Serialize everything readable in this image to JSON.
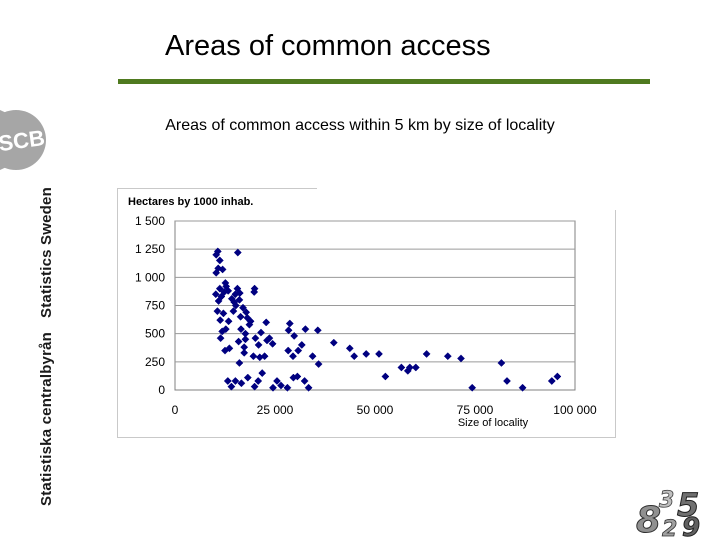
{
  "slide": {
    "title": "Areas of common access",
    "subtitle": "Areas of common access within 5 km by size of locality",
    "side_text_top": "Statistics Sweden",
    "side_text_bottom": "Statistiska centralbyrån",
    "logo_text": "SCB",
    "corner_logo_digits": [
      "8",
      "3",
      "5",
      "2",
      "9"
    ],
    "accent_color": "#4f7a1f",
    "marker_color": "#000080"
  },
  "chart_data": {
    "type": "scatter",
    "title": "",
    "xlabel": "Size of locality",
    "ylabel": "Hectares by 1000 inhab.",
    "xlim": [
      0,
      100000
    ],
    "ylim": [
      0,
      1500
    ],
    "x_ticks": [
      "0",
      "25 000",
      "50 000",
      "75 000",
      "100 000"
    ],
    "y_ticks": [
      "0",
      "250",
      "500",
      "750",
      "1 000",
      "1 250",
      "1 500"
    ],
    "grid": true,
    "legend": "none",
    "points": [
      [
        10300,
        1200
      ],
      [
        10700,
        1230
      ],
      [
        11200,
        1150
      ],
      [
        15700,
        1220
      ],
      [
        10300,
        1040
      ],
      [
        10800,
        1080
      ],
      [
        11900,
        1070
      ],
      [
        12600,
        950
      ],
      [
        12800,
        920
      ],
      [
        13300,
        880
      ],
      [
        10200,
        850
      ],
      [
        10900,
        790
      ],
      [
        11600,
        830
      ],
      [
        11200,
        900
      ],
      [
        12300,
        870
      ],
      [
        14200,
        810
      ],
      [
        15100,
        850
      ],
      [
        15600,
        900
      ],
      [
        16200,
        860
      ],
      [
        14800,
        780
      ],
      [
        16100,
        800
      ],
      [
        17000,
        730
      ],
      [
        17800,
        690
      ],
      [
        19900,
        900
      ],
      [
        19800,
        870
      ],
      [
        10600,
        700
      ],
      [
        11300,
        620
      ],
      [
        12100,
        680
      ],
      [
        12700,
        540
      ],
      [
        11800,
        520
      ],
      [
        13400,
        610
      ],
      [
        14600,
        700
      ],
      [
        15200,
        750
      ],
      [
        16400,
        650
      ],
      [
        18100,
        640
      ],
      [
        18600,
        580
      ],
      [
        18900,
        610
      ],
      [
        17600,
        500
      ],
      [
        16500,
        540
      ],
      [
        21500,
        510
      ],
      [
        22800,
        600
      ],
      [
        20100,
        460
      ],
      [
        20900,
        400
      ],
      [
        19600,
        300
      ],
      [
        15900,
        430
      ],
      [
        17300,
        380
      ],
      [
        17600,
        450
      ],
      [
        17300,
        330
      ],
      [
        22400,
        300
      ],
      [
        21200,
        290
      ],
      [
        11400,
        460
      ],
      [
        12500,
        350
      ],
      [
        13600,
        370
      ],
      [
        16100,
        240
      ],
      [
        23600,
        460
      ],
      [
        24400,
        410
      ],
      [
        23000,
        440
      ],
      [
        28400,
        530
      ],
      [
        28700,
        590
      ],
      [
        29800,
        480
      ],
      [
        28300,
        350
      ],
      [
        29500,
        300
      ],
      [
        30800,
        350
      ],
      [
        31700,
        400
      ],
      [
        32600,
        540
      ],
      [
        34400,
        300
      ],
      [
        35700,
        530
      ],
      [
        35900,
        230
      ],
      [
        39700,
        420
      ],
      [
        43700,
        370
      ],
      [
        44800,
        300
      ],
      [
        47800,
        320
      ],
      [
        51000,
        320
      ],
      [
        52600,
        120
      ],
      [
        56600,
        200
      ],
      [
        58200,
        170
      ],
      [
        58700,
        200
      ],
      [
        60200,
        200
      ],
      [
        62900,
        320
      ],
      [
        68200,
        300
      ],
      [
        71500,
        280
      ],
      [
        74300,
        20
      ],
      [
        81600,
        240
      ],
      [
        83000,
        80
      ],
      [
        86900,
        20
      ],
      [
        94200,
        80
      ],
      [
        95600,
        120
      ],
      [
        13200,
        80
      ],
      [
        14100,
        30
      ],
      [
        15100,
        80
      ],
      [
        16600,
        60
      ],
      [
        18200,
        110
      ],
      [
        19900,
        30
      ],
      [
        20800,
        80
      ],
      [
        21800,
        150
      ],
      [
        24500,
        20
      ],
      [
        25500,
        80
      ],
      [
        26500,
        40
      ],
      [
        28100,
        20
      ],
      [
        29600,
        110
      ],
      [
        30600,
        120
      ],
      [
        32400,
        80
      ],
      [
        33400,
        20
      ]
    ]
  }
}
